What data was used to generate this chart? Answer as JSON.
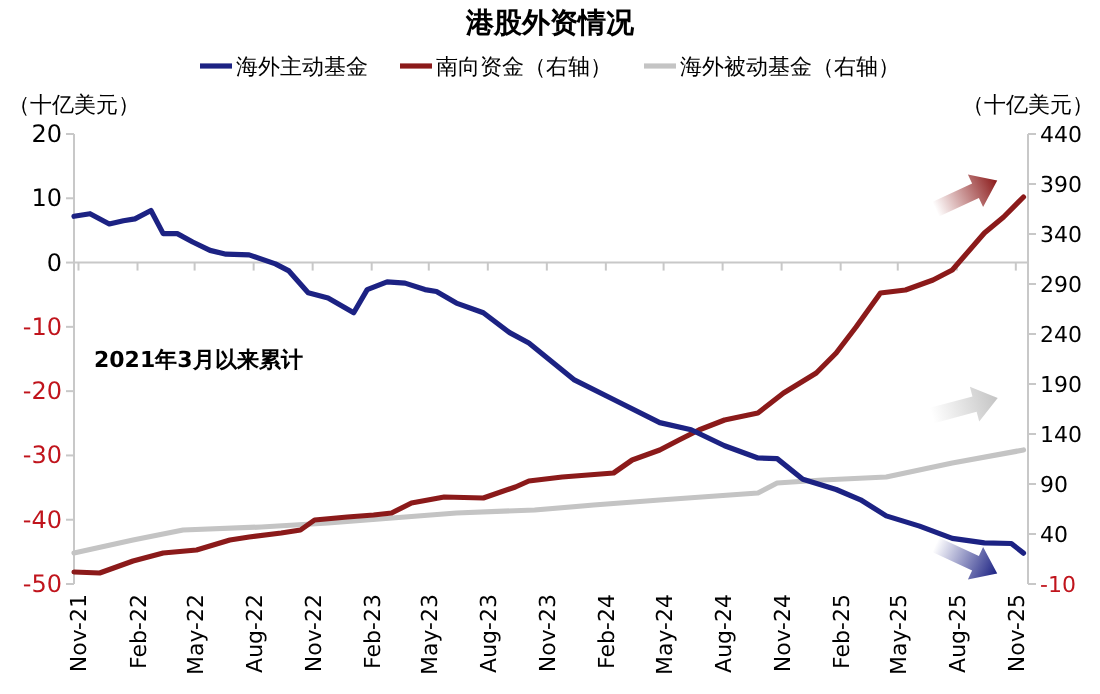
{
  "chart_data": {
    "type": "line",
    "title": "港股外资情况",
    "ylabel": "（十亿美元）",
    "y2label": "（十亿美元）",
    "legend": "top",
    "annotations": [
      "2021年3月以来累计"
    ],
    "xlim": [
      "2021-10-25",
      "2025-11-20"
    ],
    "xticks": [
      {
        "value": "2021-11-01",
        "label": "Nov-21"
      },
      {
        "value": "2022-02-01",
        "label": "Feb-22"
      },
      {
        "value": "2022-05-01",
        "label": "May-22"
      },
      {
        "value": "2022-08-01",
        "label": "Aug-22"
      },
      {
        "value": "2022-11-01",
        "label": "Nov-22"
      },
      {
        "value": "2023-02-01",
        "label": "Feb-23"
      },
      {
        "value": "2023-05-01",
        "label": "May-23"
      },
      {
        "value": "2023-08-01",
        "label": "Aug-23"
      },
      {
        "value": "2023-11-01",
        "label": "Nov-23"
      },
      {
        "value": "2024-02-01",
        "label": "Feb-24"
      },
      {
        "value": "2024-05-01",
        "label": "May-24"
      },
      {
        "value": "2024-08-01",
        "label": "Aug-24"
      },
      {
        "value": "2024-11-01",
        "label": "Nov-24"
      },
      {
        "value": "2025-02-01",
        "label": "Feb-25"
      },
      {
        "value": "2025-05-01",
        "label": "May-25"
      },
      {
        "value": "2025-08-01",
        "label": "Aug-25"
      },
      {
        "value": "2025-11-01",
        "label": "Nov-25"
      }
    ],
    "ylim": [
      -50,
      20
    ],
    "yticks": [
      -50,
      -40,
      -30,
      -20,
      -10,
      0,
      10,
      20
    ],
    "y2lim": [
      -10,
      440
    ],
    "y2ticks": [
      -10,
      40,
      90,
      140,
      190,
      240,
      290,
      340,
      390,
      440
    ],
    "series": [
      {
        "name": "海外主动基金",
        "color": "#1c2283",
        "x": [
          "2021-10-25",
          "2021-11-19",
          "2021-12-19",
          "2022-01-10",
          "2022-01-28",
          "2022-02-22",
          "2022-03-13",
          "2022-04-04",
          "2022-04-28",
          "2022-05-25",
          "2022-06-19",
          "2022-07-25",
          "2022-09-04",
          "2022-09-25",
          "2022-10-25",
          "2022-11-25",
          "2023-01-04",
          "2023-01-25",
          "2023-02-25",
          "2023-03-25",
          "2023-04-25",
          "2023-05-13",
          "2023-06-13",
          "2023-07-25",
          "2023-09-04",
          "2023-10-04",
          "2023-12-13",
          "2024-02-13",
          "2024-04-25",
          "2024-06-13",
          "2024-08-04",
          "2024-09-25",
          "2024-10-25",
          "2024-12-04",
          "2025-01-25",
          "2025-03-04",
          "2025-04-13",
          "2025-06-04",
          "2025-07-25",
          "2025-09-13",
          "2025-10-25",
          "2025-11-13"
        ],
        "values": [
          7.2,
          7.6,
          6.0,
          6.5,
          6.8,
          8.1,
          4.5,
          4.5,
          3.2,
          1.9,
          1.3,
          1.2,
          -0.2,
          -1.3,
          -4.7,
          -5.5,
          -7.8,
          -4.2,
          -3.0,
          -3.2,
          -4.2,
          -4.5,
          -6.3,
          -7.8,
          -10.9,
          -12.5,
          -18.2,
          -21.3,
          -24.9,
          -26.0,
          -28.5,
          -30.4,
          -30.5,
          -33.7,
          -35.3,
          -36.9,
          -39.4,
          -41.0,
          -42.9,
          -43.6,
          -43.7,
          -45.2
        ]
      },
      {
        "name": "南向资金（右轴）",
        "color": "#8b1a1a",
        "axis": "y2",
        "x": [
          "2021-10-25",
          "2021-12-04",
          "2022-01-25",
          "2022-03-13",
          "2022-05-04",
          "2022-06-25",
          "2022-07-25",
          "2022-09-13",
          "2022-10-13",
          "2022-11-04",
          "2022-12-25",
          "2023-02-04",
          "2023-03-04",
          "2023-04-04",
          "2023-05-25",
          "2023-07-25",
          "2023-09-13",
          "2023-10-04",
          "2023-11-25",
          "2024-02-13",
          "2024-03-13",
          "2024-04-25",
          "2024-05-25",
          "2024-06-25",
          "2024-08-04",
          "2024-09-25",
          "2024-11-04",
          "2024-12-25",
          "2025-01-25",
          "2025-02-25",
          "2025-04-04",
          "2025-05-13",
          "2025-06-25",
          "2025-07-25",
          "2025-09-13",
          "2025-10-13",
          "2025-11-13"
        ],
        "values": [
          2,
          1,
          13,
          21,
          24,
          34,
          37,
          41,
          44,
          54,
          57,
          59,
          61,
          71,
          77,
          76,
          87,
          93,
          97,
          101,
          114,
          124,
          134,
          144,
          154,
          161,
          181,
          201,
          221,
          247,
          281,
          284,
          294,
          304,
          341,
          357,
          377
        ]
      },
      {
        "name": "海外被动基金（右轴）",
        "color": "#c4c4c4",
        "axis": "y2",
        "x": [
          "2021-10-25",
          "2022-01-25",
          "2022-04-13",
          "2022-08-13",
          "2022-11-25",
          "2023-02-13",
          "2023-06-13",
          "2023-10-13",
          "2024-01-13",
          "2024-04-25",
          "2024-09-25",
          "2024-10-25",
          "2025-01-04",
          "2025-04-13",
          "2025-07-25",
          "2025-11-13"
        ],
        "values": [
          21,
          34,
          44,
          47,
          51,
          55,
          61,
          64,
          69,
          74,
          81,
          91,
          94,
          97,
          111,
          124
        ]
      }
    ]
  }
}
